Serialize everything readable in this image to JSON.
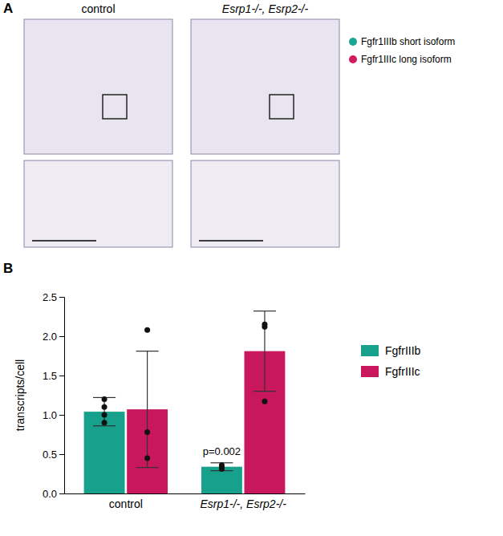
{
  "panel_a": {
    "letter": "A",
    "columns": [
      "control",
      "Esrp1-/-, Esrp2-/-"
    ],
    "legend": [
      {
        "name": "Fgfr1IIIb short isoform",
        "color": "#1aa597"
      },
      {
        "name": "Fgfr1IIIc long isoform",
        "color": "#cf1a5c"
      }
    ]
  },
  "panel_b": {
    "letter": "B"
  },
  "chart_data": {
    "type": "bar",
    "categories": [
      "control",
      "Esrp1-/-, Esrp2-/-"
    ],
    "y_label": "transcripts/cell",
    "series": [
      {
        "name": "FgfrIIIb",
        "color": "#17a08c",
        "values": [
          1.04,
          0.34
        ],
        "errors": [
          0.18,
          0.05
        ],
        "points": [
          [
            1.2,
            1.1,
            1.0,
            0.9
          ],
          [
            0.36,
            0.33,
            0.31
          ]
        ]
      },
      {
        "name": "FgfrIIIc",
        "color": "#c8175d",
        "values": [
          1.07,
          1.81
        ],
        "errors": [
          0.74,
          0.51
        ],
        "points": [
          [
            2.08,
            0.78,
            0.45
          ],
          [
            2.15,
            2.12,
            1.17
          ]
        ]
      }
    ],
    "annotations": [
      {
        "text": "p=0.002",
        "x": "Esrp1-/-, Esrp2-/-",
        "series": "FgfrIIIb"
      }
    ],
    "ylim": [
      0,
      2.5
    ],
    "yticks": [
      {
        "value": 0,
        "label": "0.0"
      },
      0.5,
      {
        "value": 1,
        "label": "1.0"
      },
      1.5,
      {
        "value": 2,
        "label": "2.0"
      },
      2.5
    ],
    "legend": "right",
    "grid": false
  }
}
